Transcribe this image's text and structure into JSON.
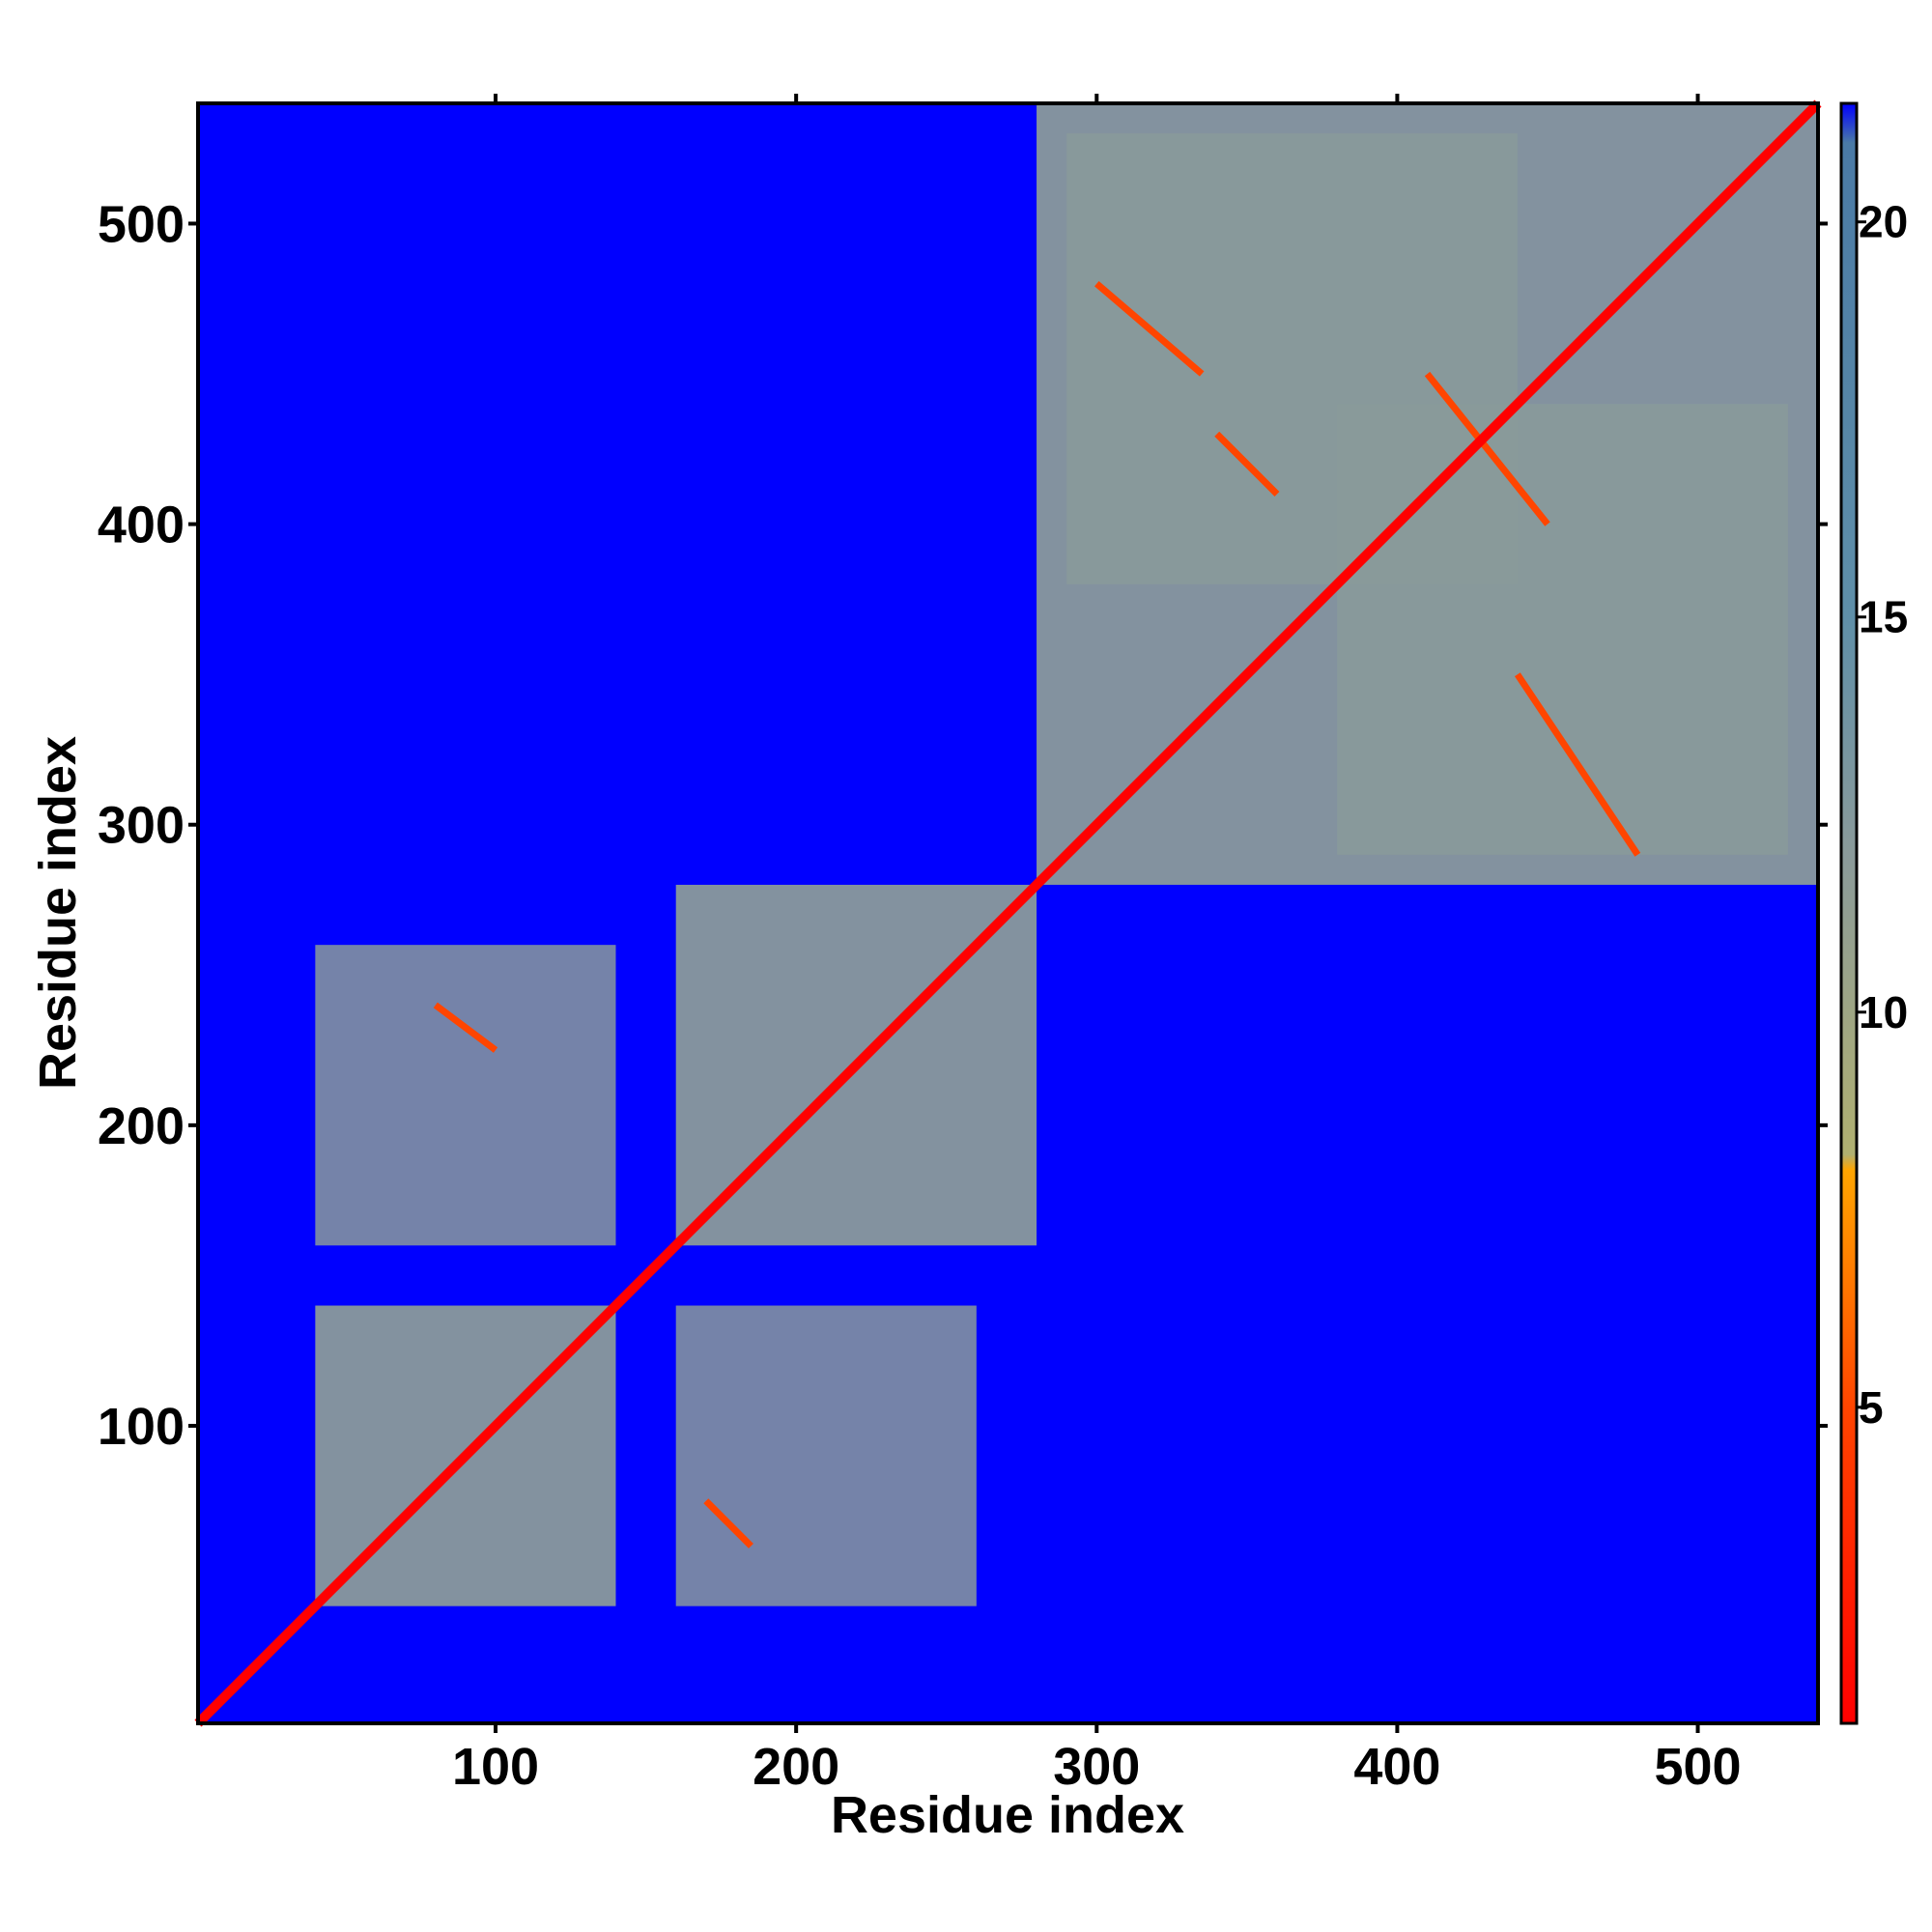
{
  "chart_data": {
    "type": "heatmap",
    "title": "",
    "xlabel": "Residue index",
    "ylabel": "Residue index",
    "xlim": [
      1,
      540
    ],
    "ylim": [
      1,
      540
    ],
    "x_ticks": [
      100,
      200,
      300,
      400,
      500
    ],
    "y_ticks": [
      100,
      200,
      300,
      400,
      500
    ],
    "colorbar": {
      "range": [
        1,
        21.5
      ],
      "ticks": [
        5,
        10,
        15,
        20
      ],
      "stops": [
        {
          "value": 1,
          "color": "#ff0000"
        },
        {
          "value": 5,
          "color": "#ff4500"
        },
        {
          "value": 8,
          "color": "#ffa500"
        },
        {
          "value": 8.2,
          "color": "#b0b070"
        },
        {
          "value": 12,
          "color": "#8a9a9a"
        },
        {
          "value": 15,
          "color": "#5f8fa8"
        },
        {
          "value": 21,
          "color": "#4a7aa6"
        },
        {
          "value": 21.5,
          "color": "#0000ff"
        }
      ]
    },
    "background_value": 21.5,
    "diagonal_value": 2,
    "domains": [
      {
        "from": 40,
        "to": 140,
        "value": 15
      },
      {
        "from": 160,
        "to": 280,
        "value": 15
      },
      {
        "from": 280,
        "to": 540,
        "value": 15
      }
    ],
    "contact_regions": [
      {
        "x": [
          40,
          140
        ],
        "y": [
          160,
          260
        ],
        "value": 15
      },
      {
        "x": [
          160,
          260
        ],
        "y": [
          40,
          140
        ],
        "value": 15
      },
      {
        "x": [
          290,
          440
        ],
        "y": [
          380,
          530
        ],
        "value": 15
      },
      {
        "x": [
          380,
          530
        ],
        "y": [
          290,
          440
        ],
        "value": 15
      }
    ],
    "contact_lines": [
      {
        "from": [
          80,
          240
        ],
        "to": [
          100,
          225
        ],
        "value": 6
      },
      {
        "from": [
          170,
          75
        ],
        "to": [
          185,
          60
        ],
        "value": 6
      },
      {
        "from": [
          300,
          480
        ],
        "to": [
          335,
          450
        ],
        "value": 7
      },
      {
        "from": [
          410,
          450
        ],
        "to": [
          450,
          400
        ],
        "value": 7
      },
      {
        "from": [
          440,
          350
        ],
        "to": [
          480,
          290
        ],
        "value": 7
      },
      {
        "from": [
          340,
          430
        ],
        "to": [
          360,
          410
        ],
        "value": 7
      }
    ]
  }
}
